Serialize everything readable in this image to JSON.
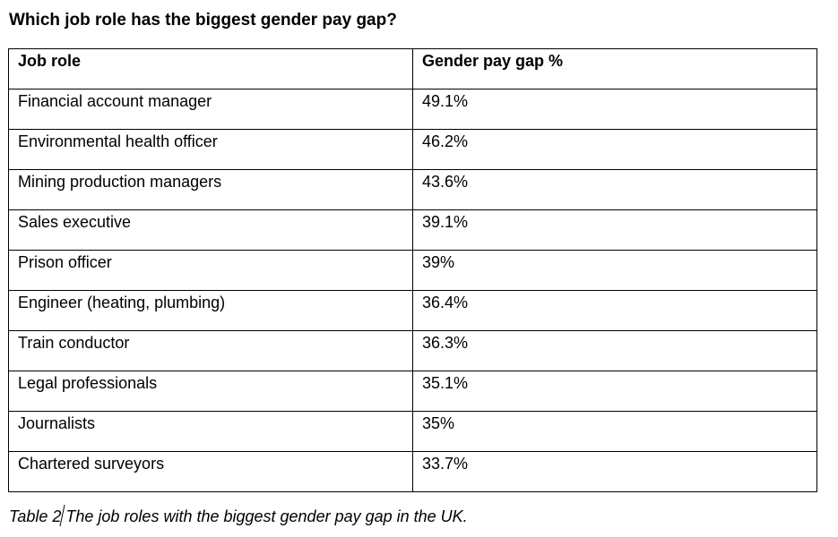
{
  "title": "Which job role has the biggest gender pay gap?",
  "table": {
    "headers": [
      "Job role",
      "Gender pay gap %"
    ],
    "rows": [
      [
        "Financial account manager",
        "49.1%"
      ],
      [
        "Environmental health officer",
        "46.2%"
      ],
      [
        "Mining production managers",
        "43.6%"
      ],
      [
        "Sales executive",
        "39.1%"
      ],
      [
        "Prison officer",
        "39%"
      ],
      [
        "Engineer (heating, plumbing)",
        "36.4%"
      ],
      [
        "Train conductor",
        "36.3%"
      ],
      [
        "Legal professionals",
        "35.1%"
      ],
      [
        "Journalists",
        "35%"
      ],
      [
        "Chartered surveyors",
        "33.7%"
      ]
    ]
  },
  "caption": {
    "label": "Table 2",
    "text": "The job roles with the biggest gender pay gap in the UK."
  },
  "chart_data": {
    "type": "table",
    "columns": [
      "Job role",
      "Gender pay gap %"
    ],
    "rows": [
      [
        "Financial account manager",
        "49.1%"
      ],
      [
        "Environmental health officer",
        "46.2%"
      ],
      [
        "Mining production managers",
        "43.6%"
      ],
      [
        "Sales executive",
        "39.1%"
      ],
      [
        "Prison officer",
        "39%"
      ],
      [
        "Engineer (heating, plumbing)",
        "36.4%"
      ],
      [
        "Train conductor",
        "36.3%"
      ],
      [
        "Legal professionals",
        "35.1%"
      ],
      [
        "Journalists",
        "35%"
      ],
      [
        "Chartered surveyors",
        "33.7%"
      ]
    ]
  }
}
